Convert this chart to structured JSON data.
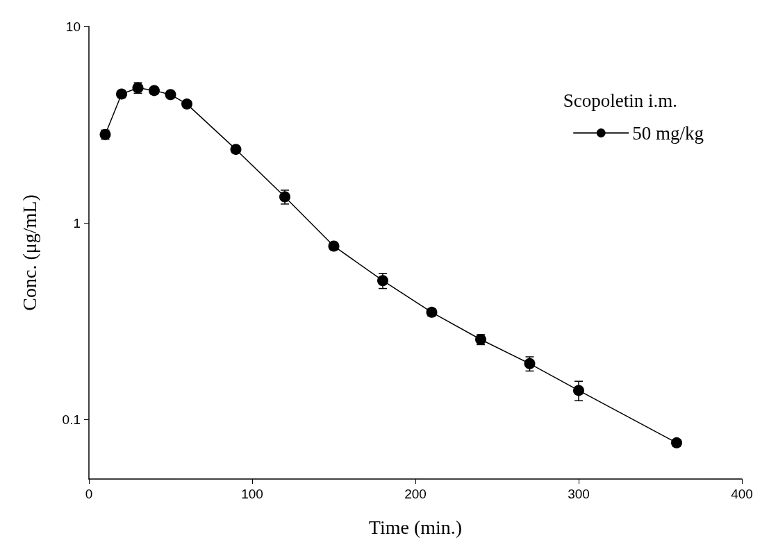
{
  "chart_data": {
    "type": "line",
    "xlabel": "Time (min.)",
    "ylabel": "Conc. (μg/mL)",
    "legend_title": "Scopoletin i.m.",
    "legend": "top right",
    "marker": "circle",
    "log": "y",
    "grid": false,
    "xlim": [
      0,
      400
    ],
    "xticks": [
      0,
      100,
      200,
      300,
      400
    ],
    "ylim": [
      0.05,
      10
    ],
    "yticks": [
      0.1,
      1,
      10
    ],
    "series": [
      {
        "name": "50 mg/kg",
        "color": "#000000",
        "x": [
          10,
          20,
          30,
          40,
          50,
          60,
          90,
          120,
          150,
          180,
          210,
          240,
          270,
          300,
          360
        ],
        "values": [
          2.82,
          4.53,
          4.87,
          4.72,
          4.5,
          4.03,
          2.37,
          1.36,
          0.764,
          0.51,
          0.352,
          0.256,
          0.193,
          0.141,
          0.0764
        ],
        "errors": [
          0.15,
          0.15,
          0.3,
          0.15,
          0.15,
          0.15,
          0.08,
          0.11,
          0.03,
          0.045,
          0.015,
          0.015,
          0.016,
          0.016,
          0.003
        ]
      }
    ]
  }
}
